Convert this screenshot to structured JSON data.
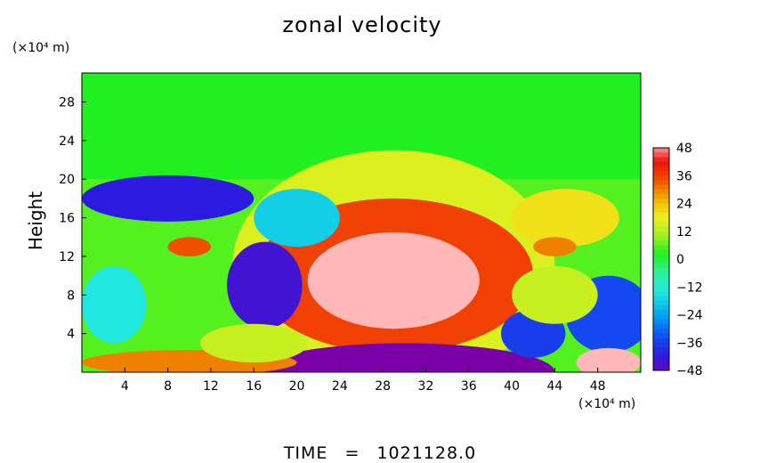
{
  "chart_data": {
    "type": "heatmap",
    "title": "zonal velocity",
    "xlabel": "",
    "ylabel": "Height",
    "x_unit": "(×10⁴ m)",
    "y_unit": "(×10⁴ m)",
    "xlim": [
      0,
      52
    ],
    "ylim": [
      0,
      31
    ],
    "x_ticks": [
      4,
      8,
      12,
      16,
      20,
      24,
      28,
      32,
      36,
      40,
      44,
      48
    ],
    "x_tick_labels": [
      "4",
      "8",
      "12",
      "16",
      "20",
      "24",
      "28",
      "32",
      "36",
      "40",
      "44",
      "48"
    ],
    "y_ticks": [
      4,
      8,
      12,
      16,
      20,
      24,
      28
    ],
    "y_tick_labels": [
      "4",
      "8",
      "12",
      "16",
      "20",
      "24",
      "28"
    ],
    "colorbar": {
      "min": -48,
      "max": 48,
      "ticks": [
        48,
        36,
        24,
        12,
        0,
        -12,
        -24,
        -36,
        -48
      ],
      "tick_labels": [
        "48",
        "36",
        "24",
        "12",
        "0",
        "−12",
        "−24",
        "−36",
        "−48"
      ]
    },
    "background_value": 2,
    "features": [
      {
        "kind": "ellipse",
        "x": 29,
        "y": 11,
        "rx": 15,
        "ry": 12,
        "value": 16
      },
      {
        "kind": "ellipse",
        "x": 29,
        "y": 10,
        "rx": 13,
        "ry": 8,
        "value": 36
      },
      {
        "kind": "ellipse",
        "x": 29,
        "y": 9.5,
        "rx": 8,
        "ry": 5,
        "value": 50
      },
      {
        "kind": "ellipse",
        "x": 30,
        "y": 0,
        "rx": 14,
        "ry": 3,
        "value": -50
      },
      {
        "kind": "ellipse",
        "x": 8,
        "y": 18,
        "rx": 8,
        "ry": 2.4,
        "value": -42
      },
      {
        "kind": "ellipse",
        "x": 17,
        "y": 9,
        "rx": 3.5,
        "ry": 4.5,
        "value": -44
      },
      {
        "kind": "ellipse",
        "x": 49,
        "y": 6,
        "rx": 4,
        "ry": 4,
        "value": -34
      },
      {
        "kind": "ellipse",
        "x": 42,
        "y": 4,
        "rx": 3,
        "ry": 2.5,
        "value": -36
      },
      {
        "kind": "ellipse",
        "x": 49,
        "y": 1,
        "rx": 3,
        "ry": 1.5,
        "value": 50
      },
      {
        "kind": "ellipse",
        "x": 10,
        "y": 1,
        "rx": 10,
        "ry": 1.3,
        "value": 30
      },
      {
        "kind": "ellipse",
        "x": 10,
        "y": 13,
        "rx": 2,
        "ry": 1,
        "value": 34
      },
      {
        "kind": "ellipse",
        "x": 3,
        "y": 7,
        "rx": 3,
        "ry": 4,
        "value": -14
      },
      {
        "kind": "ellipse",
        "x": 20,
        "y": 16,
        "rx": 4,
        "ry": 3,
        "value": -18
      },
      {
        "kind": "ellipse",
        "x": 45,
        "y": 16,
        "rx": 5,
        "ry": 3,
        "value": 20
      },
      {
        "kind": "ellipse",
        "x": 44,
        "y": 13,
        "rx": 2,
        "ry": 1,
        "value": 30
      },
      {
        "kind": "ellipse",
        "x": 16,
        "y": 3,
        "rx": 5,
        "ry": 2,
        "value": 14
      },
      {
        "kind": "ellipse",
        "x": 44,
        "y": 8,
        "rx": 4,
        "ry": 3,
        "value": 14
      }
    ]
  },
  "footer": {
    "label": "TIME",
    "equals": "=",
    "value": "1021128.0"
  }
}
